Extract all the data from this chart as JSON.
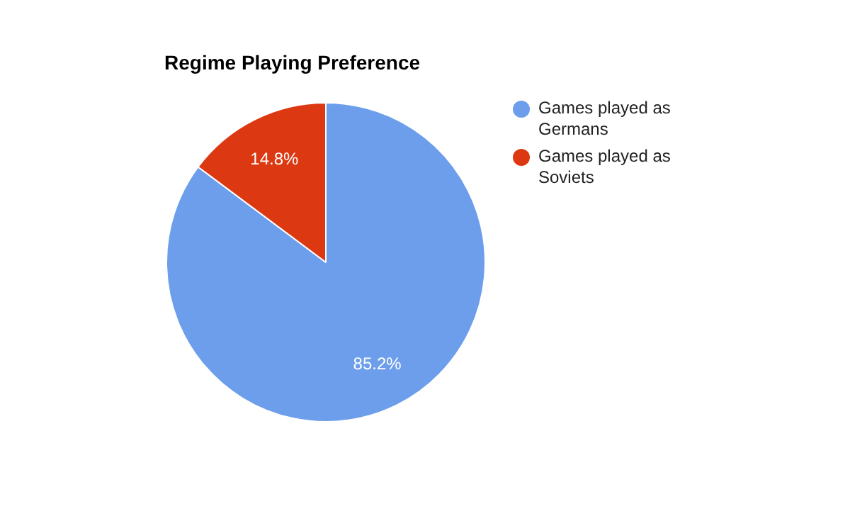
{
  "chart_data": {
    "type": "pie",
    "title": "Regime Playing Preference",
    "categories": [
      "Games played as Germans",
      "Games played as Soviets"
    ],
    "values": [
      85.2,
      14.8
    ],
    "colors": [
      "#6d9eeb",
      "#dc3912"
    ],
    "value_labels": [
      "85.2%",
      "14.8%"
    ],
    "legend": "right"
  }
}
